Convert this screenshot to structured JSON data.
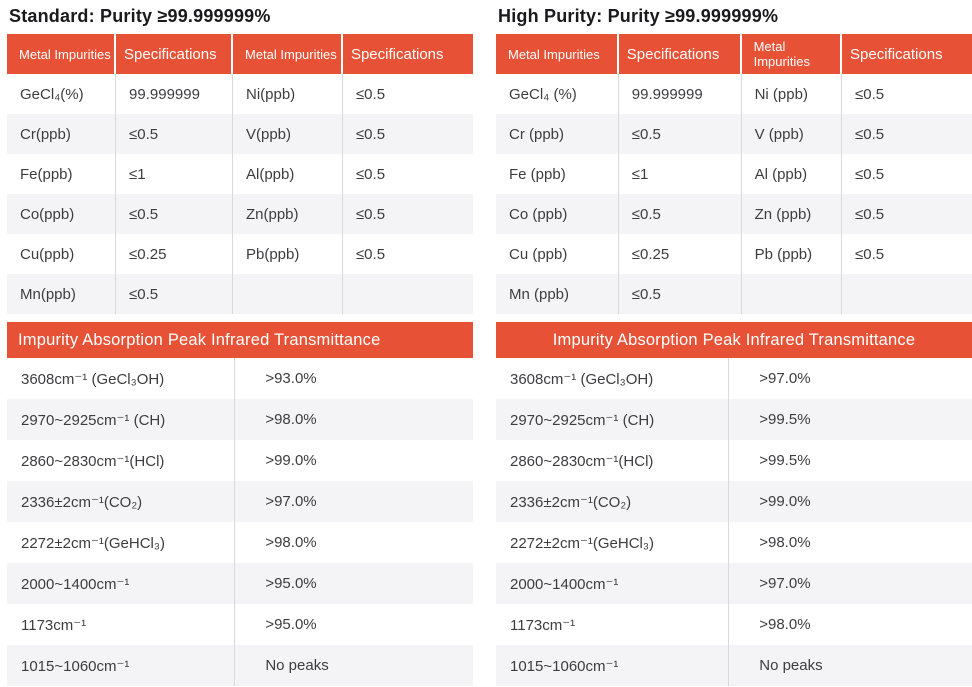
{
  "accent_color": "#E75236",
  "stripe_color": "#F4F4F6",
  "panels": [
    {
      "title": "Standard: Purity ≥99.999999%",
      "metal_table": {
        "headers": [
          "Metal Impurities",
          "Specifications",
          "Metal Impurities",
          "Specifications"
        ],
        "rows": [
          [
            "GeCl₄(%)",
            "99.999999",
            "Ni(ppb)",
            "≤0.5"
          ],
          [
            "Cr(ppb)",
            "≤0.5",
            "V(ppb)",
            "≤0.5"
          ],
          [
            "Fe(ppb)",
            "≤1",
            "Al(ppb)",
            "≤0.5"
          ],
          [
            "Co(ppb)",
            "≤0.5",
            "Zn(ppb)",
            "≤0.5"
          ],
          [
            "Cu(ppb)",
            "≤0.25",
            "Pb(ppb)",
            "≤0.5"
          ],
          [
            "Mn(ppb)",
            "≤0.5",
            "",
            ""
          ]
        ]
      },
      "ir_table": {
        "header": "Impurity Absorption Peak Infrared Transmittance",
        "rows": [
          [
            "3608cm⁻¹ (GeCl₃OH)",
            ">93.0%"
          ],
          [
            "2970~2925cm⁻¹ (CH)",
            ">98.0%"
          ],
          [
            "2860~2830cm⁻¹(HCl)",
            ">99.0%"
          ],
          [
            "2336±2cm⁻¹(CO₂)",
            ">97.0%"
          ],
          [
            "2272±2cm⁻¹(GeHCl₃)",
            ">98.0%"
          ],
          [
            "2000~1400cm⁻¹",
            ">95.0%"
          ],
          [
            "1173cm⁻¹",
            ">95.0%"
          ],
          [
            "1015~1060cm⁻¹",
            "No peaks"
          ]
        ]
      }
    },
    {
      "title": "High Purity: Purity ≥99.999999%",
      "metal_table": {
        "headers": [
          "Metal Impurities",
          "Specifications",
          "Metal Impurities",
          "Specifications"
        ],
        "rows": [
          [
            "GeCl₄ (%)",
            "99.999999",
            "Ni (ppb)",
            "≤0.5"
          ],
          [
            "Cr (ppb)",
            "≤0.5",
            "V (ppb)",
            "≤0.5"
          ],
          [
            "Fe (ppb)",
            "≤1",
            "Al (ppb)",
            "≤0.5"
          ],
          [
            "Co (ppb)",
            "≤0.5",
            "Zn (ppb)",
            "≤0.5"
          ],
          [
            "Cu (ppb)",
            "≤0.25",
            "Pb (ppb)",
            "≤0.5"
          ],
          [
            "Mn (ppb)",
            "≤0.5",
            "",
            ""
          ]
        ]
      },
      "ir_table": {
        "header": "Impurity Absorption Peak Infrared Transmittance",
        "rows": [
          [
            "3608cm⁻¹ (GeCl₃OH)",
            ">97.0%"
          ],
          [
            "2970~2925cm⁻¹ (CH)",
            ">99.5%"
          ],
          [
            "2860~2830cm⁻¹(HCl)",
            ">99.5%"
          ],
          [
            "2336±2cm⁻¹(CO₂)",
            ">99.0%"
          ],
          [
            "2272±2cm⁻¹(GeHCl₃)",
            ">98.0%"
          ],
          [
            "2000~1400cm⁻¹",
            ">97.0%"
          ],
          [
            "1173cm⁻¹",
            ">98.0%"
          ],
          [
            "1015~1060cm⁻¹",
            "No peaks"
          ]
        ]
      }
    }
  ]
}
